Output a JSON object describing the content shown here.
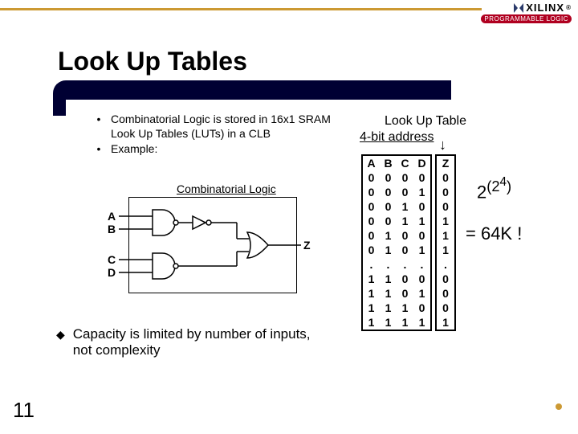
{
  "colors": {
    "navy": "#000033",
    "red": "#c02020",
    "gold": "#cc9933",
    "black": "#000000",
    "white": "#ffffff",
    "badge_bg": "#b00020"
  },
  "brand": {
    "name": "XILINX",
    "badge": "PROGRAMMABLE LOGIC"
  },
  "title": "Look Up Tables",
  "bullets": [
    "Combinatorial Logic is stored in 16x1 SRAM Look Up Tables (LUTs) in a CLB",
    "Example:"
  ],
  "diagram": {
    "caption": "Combinatorial Logic",
    "inputs_top": [
      "A",
      "B"
    ],
    "inputs_bot": [
      "C",
      "D"
    ],
    "output": "Z"
  },
  "capacity": "Capacity is limited by number of inputs, not complexity",
  "lut": {
    "title": "Look Up Table",
    "subtitle": "4-bit address",
    "headers": [
      "A",
      "B",
      "C",
      "D"
    ],
    "z_header": "Z",
    "rows": [
      [
        "0",
        "0",
        "0",
        "0",
        "0"
      ],
      [
        "0",
        "0",
        "0",
        "1",
        "0"
      ],
      [
        "0",
        "0",
        "1",
        "0",
        "0"
      ],
      [
        "0",
        "0",
        "1",
        "1",
        "1"
      ],
      [
        "0",
        "1",
        "0",
        "0",
        "1"
      ],
      [
        "0",
        "1",
        "0",
        "1",
        "1"
      ],
      [
        ".",
        ".",
        ".",
        ".",
        "."
      ],
      [
        "1",
        "1",
        "0",
        "0",
        "0"
      ],
      [
        "1",
        "1",
        "0",
        "1",
        "0"
      ],
      [
        "1",
        "1",
        "1",
        "0",
        "0"
      ],
      [
        "1",
        "1",
        "1",
        "1",
        "1"
      ]
    ]
  },
  "formula": {
    "combos": "2",
    "exp_outer": "(2",
    "exp_inner": "4",
    "exp_close": ")",
    "result": "= 64K !"
  },
  "page": "11"
}
